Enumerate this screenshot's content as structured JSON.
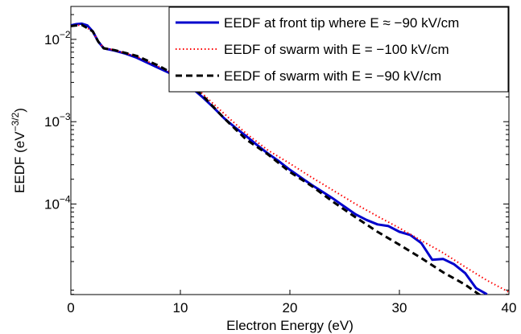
{
  "chart_data": {
    "type": "line",
    "xlabel": "Electron Energy (eV)",
    "ylabel": {
      "base": "EEDF (eV",
      "sup": "−3/2",
      "close": ")"
    },
    "xlim": [
      0,
      40
    ],
    "ylim_log10": [
      -5.1,
      -1.6
    ],
    "y_scale": "log",
    "x_ticks": [
      0,
      10,
      20,
      30,
      40
    ],
    "y_ticks": [
      {
        "value_log10": -2,
        "base": "10",
        "exp": "−2"
      },
      {
        "value_log10": -3,
        "base": "10",
        "exp": "−3"
      },
      {
        "value_log10": -4,
        "base": "10",
        "exp": "−4"
      }
    ],
    "legend_position": "top-right",
    "series": [
      {
        "name": "EEDF at front tip where E ≈ −90 kV/cm",
        "color": "#0000cc",
        "style": "solid",
        "x": [
          0,
          0.5,
          1,
          1.5,
          2,
          2.5,
          3,
          4,
          5,
          6,
          7,
          8,
          9,
          10,
          11,
          12,
          13,
          14,
          15,
          16,
          17,
          18,
          19,
          20,
          21,
          22,
          23,
          24,
          25,
          26,
          27,
          28,
          29,
          30,
          31,
          32,
          33,
          34,
          35,
          36,
          37,
          38
        ],
        "y": [
          0.0148,
          0.0153,
          0.0155,
          0.0148,
          0.0125,
          0.0094,
          0.0078,
          0.0073,
          0.0067,
          0.006,
          0.0052,
          0.0045,
          0.0039,
          0.0033,
          0.0026,
          0.002,
          0.0015,
          0.0011,
          0.00085,
          0.00067,
          0.00052,
          0.00041,
          0.00033,
          0.00026,
          0.00021,
          0.00017,
          0.00014,
          0.000115,
          9.25e-05,
          7.5e-05,
          6.4e-05,
          5.65e-05,
          5.4e-05,
          4.6e-05,
          4.2e-05,
          3.35e-05,
          2.1e-05,
          2.15e-05,
          1.85e-05,
          1.45e-05,
          9.5e-06,
          8e-06
        ]
      },
      {
        "name": "EEDF of swarm with E = −100 kV/cm",
        "color": "#ff0000",
        "style": "dotted",
        "x": [
          0,
          1,
          2,
          2.5,
          3,
          4,
          6,
          8,
          10,
          12,
          14,
          16,
          18,
          20,
          22,
          24,
          26,
          28,
          30,
          32,
          34,
          36,
          38,
          40
        ],
        "y": [
          0.0145,
          0.015,
          0.0125,
          0.0094,
          0.0079,
          0.0074,
          0.0062,
          0.0047,
          0.0035,
          0.0022,
          0.00125,
          0.00072,
          0.00045,
          0.00031,
          0.00021,
          0.000145,
          0.0001,
          7.1e-05,
          5.1e-05,
          3.6e-05,
          2.55e-05,
          1.72e-05,
          1.18e-05,
          8.5e-06
        ]
      },
      {
        "name": "EEDF of swarm with E = −90 kV/cm",
        "color": "#000000",
        "style": "dashed",
        "x": [
          0,
          1,
          2,
          2.5,
          3,
          4,
          6,
          8,
          10,
          12,
          14,
          16,
          18,
          20,
          22,
          24,
          26,
          28,
          30,
          32,
          34,
          36,
          38
        ],
        "y": [
          0.0145,
          0.015,
          0.0125,
          0.0094,
          0.0078,
          0.0074,
          0.0063,
          0.0048,
          0.0034,
          0.0021,
          0.0011,
          0.00061,
          0.0004,
          0.000245,
          0.000165,
          0.000105,
          6.9e-05,
          4.6e-05,
          3.2e-05,
          2.2e-05,
          1.48e-05,
          1.05e-05,
          6.8e-06
        ]
      }
    ]
  }
}
